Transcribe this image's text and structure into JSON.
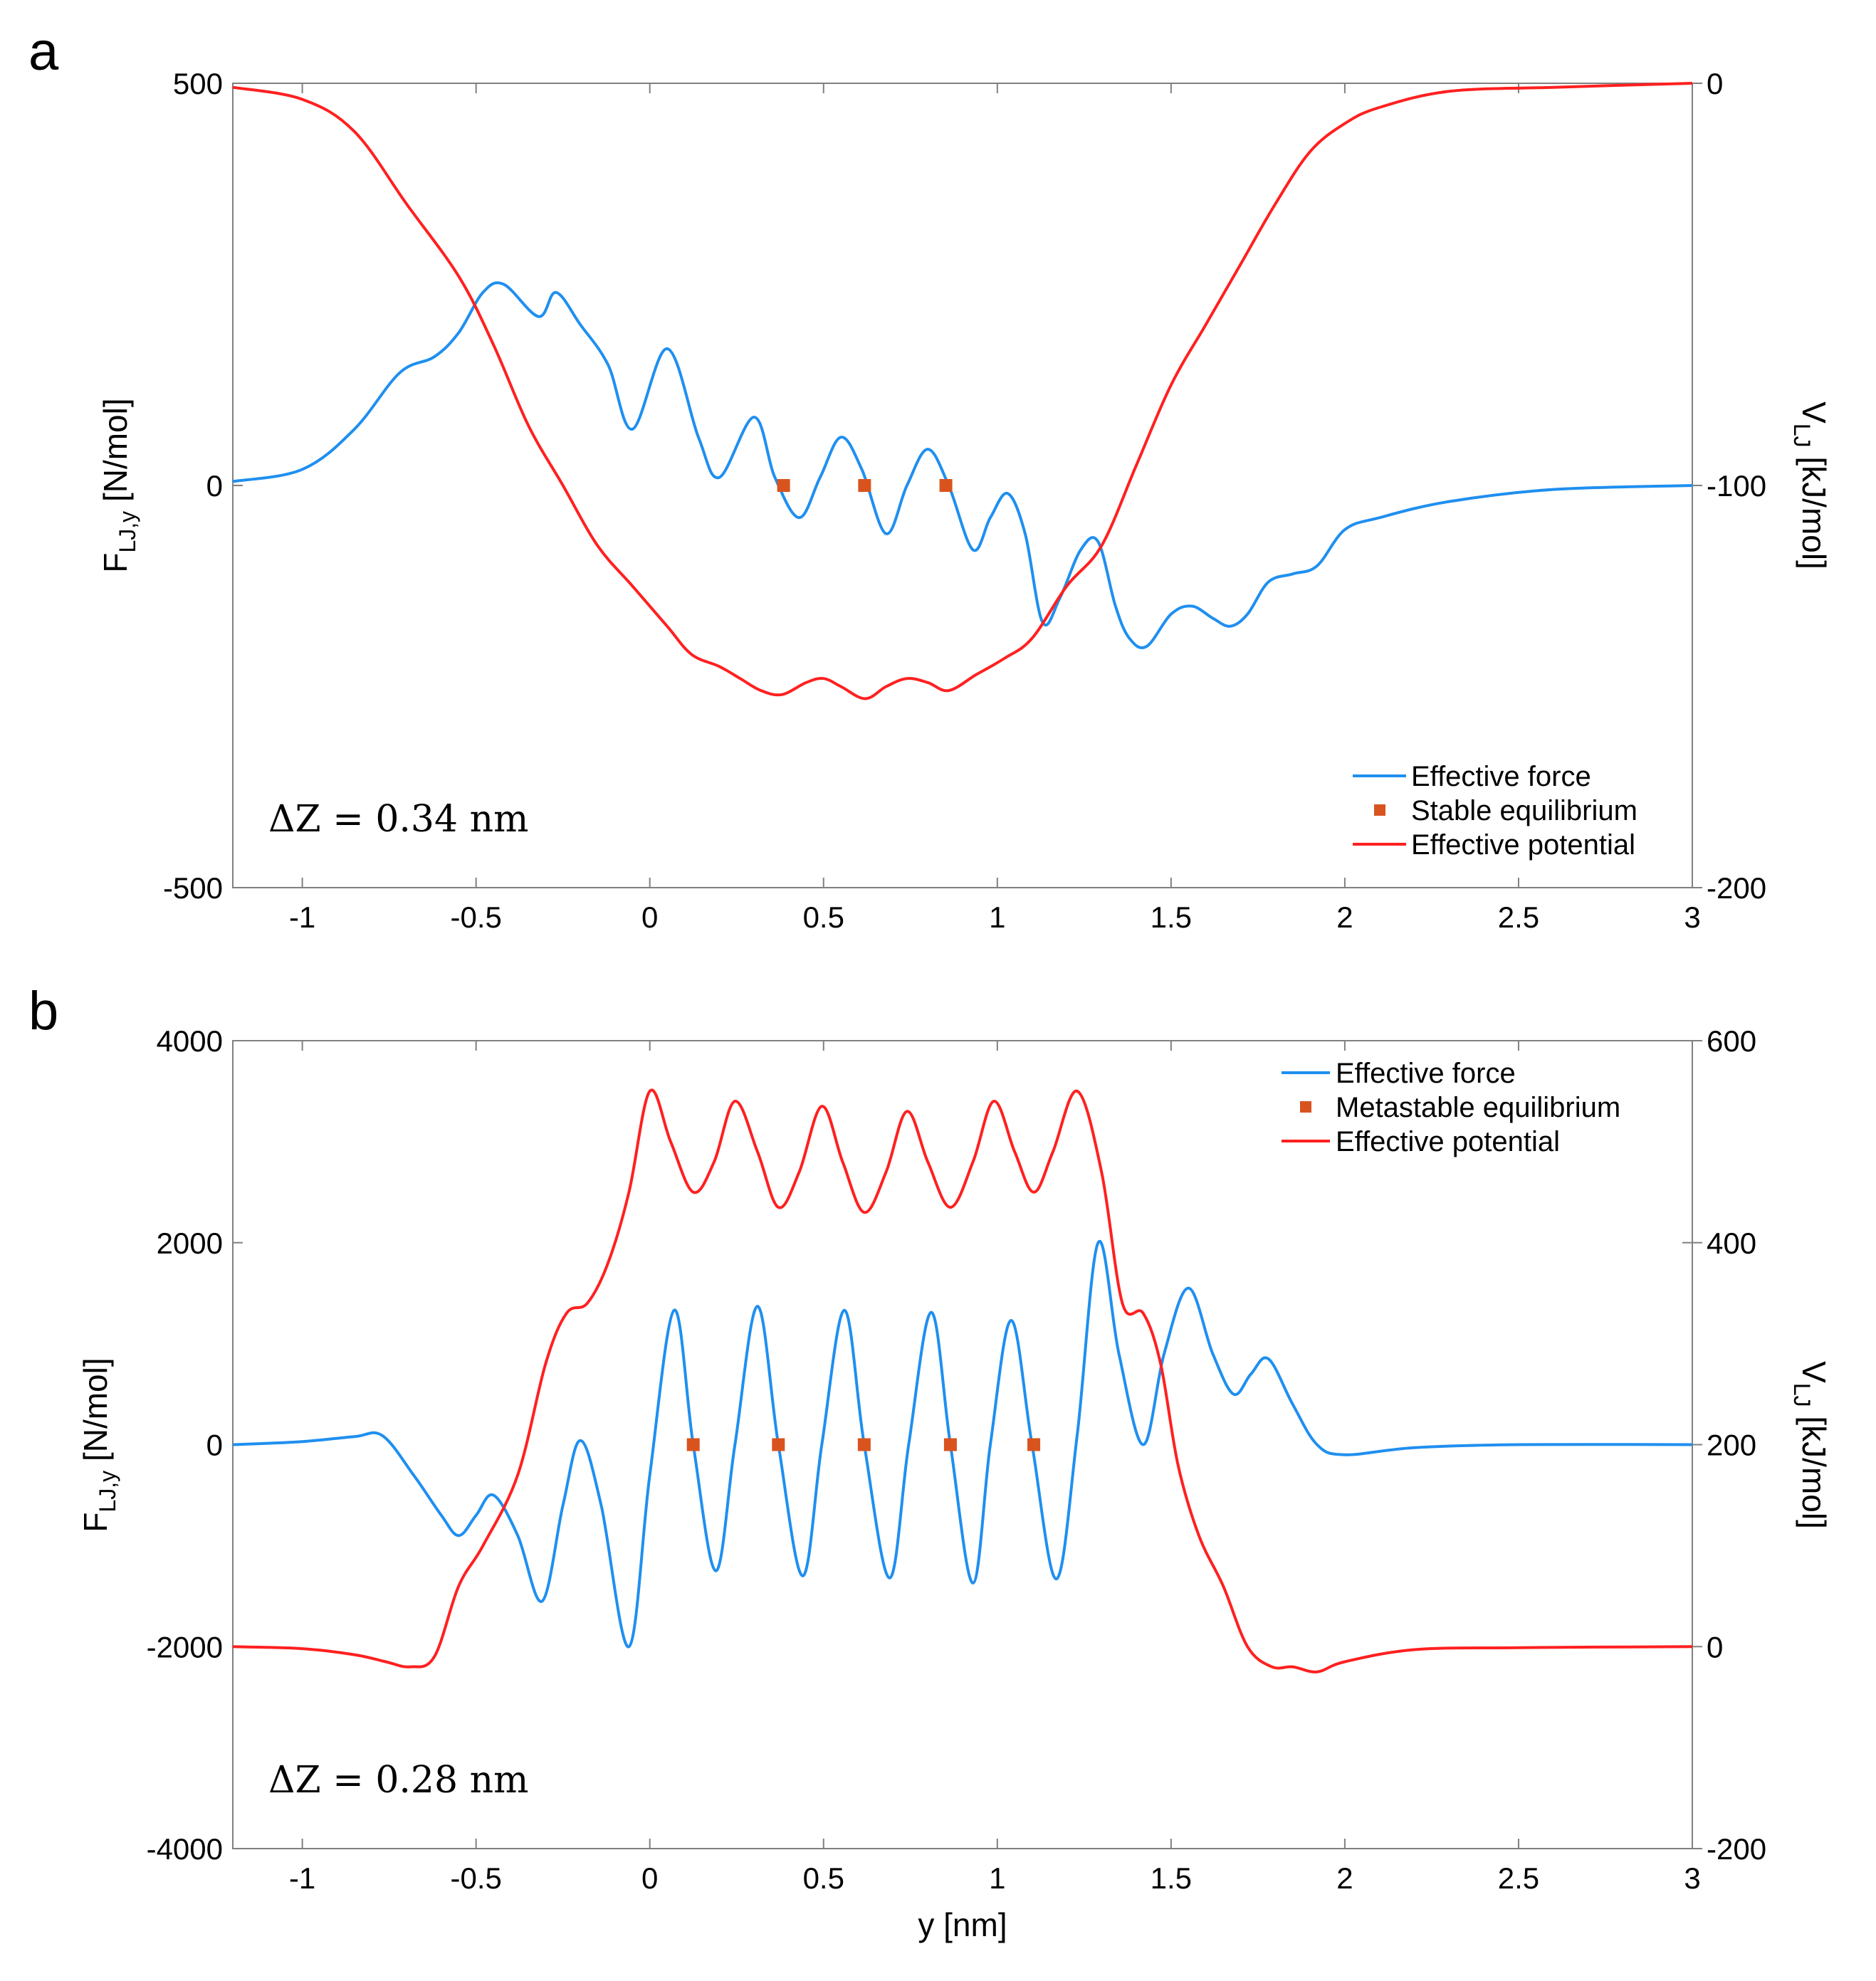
{
  "chart_data": [
    {
      "type": "line",
      "panel": "a",
      "xlabel": "",
      "ylabel_left": {
        "base": "F",
        "sub": "LJ,y",
        "unit": " [N/mol]"
      },
      "ylabel_right": {
        "base": "V",
        "sub": "LJ",
        "unit": " [kJ/mol]"
      },
      "xlim": [
        -1.2,
        3
      ],
      "ylim_left": [
        -500,
        500
      ],
      "ylim_right": [
        -200,
        0
      ],
      "xticks": [
        -1,
        -0.5,
        0,
        0.5,
        1,
        1.5,
        2,
        2.5,
        3
      ],
      "xtick_labels": [
        "-1",
        "-0.5",
        "0",
        "0.5",
        "1",
        "1.5",
        "2",
        "2.5",
        "3"
      ],
      "yticks_left": [
        -500,
        0,
        500
      ],
      "ytick_labels_left": [
        "-500",
        "0",
        "500"
      ],
      "yticks_right": [
        -200,
        -100,
        0
      ],
      "ytick_labels_right": [
        "-200",
        "-100",
        "0"
      ],
      "annotation": "ΔZ = 0.34 nm",
      "legend_position": "bottom-right",
      "series": [
        {
          "name": "Effective force",
          "axis": "left",
          "color": "#1f8ff0",
          "x": [
            -1.2,
            -1.0,
            -0.85,
            -0.72,
            -0.62,
            -0.55,
            -0.48,
            -0.42,
            -0.32,
            -0.27,
            -0.2,
            -0.12,
            -0.05,
            0.05,
            0.14,
            0.2,
            0.3,
            0.36,
            0.43,
            0.49,
            0.55,
            0.61,
            0.68,
            0.74,
            0.8,
            0.86,
            0.93,
            0.98,
            1.03,
            1.08,
            1.13,
            1.18,
            1.24,
            1.29,
            1.34,
            1.38,
            1.43,
            1.5,
            1.56,
            1.62,
            1.67,
            1.72,
            1.78,
            1.85,
            1.92,
            2.0,
            2.1,
            2.3,
            2.6,
            3.0
          ],
          "y": [
            5,
            20,
            70,
            140,
            160,
            190,
            240,
            250,
            210,
            240,
            200,
            150,
            70,
            170,
            60,
            10,
            85,
            10,
            -40,
            10,
            60,
            20,
            -60,
            0,
            45,
            0,
            -80,
            -40,
            -10,
            -60,
            -170,
            -140,
            -80,
            -70,
            -150,
            -190,
            -200,
            -160,
            -150,
            -165,
            -175,
            -160,
            -120,
            -110,
            -100,
            -55,
            -40,
            -20,
            -5,
            0
          ]
        },
        {
          "name": "Stable equilibrium",
          "axis": "left",
          "color": "#d9531e",
          "marker": "square",
          "x": [
            0.385,
            0.618,
            0.852
          ],
          "y": [
            0,
            0,
            0
          ]
        },
        {
          "name": "Effective potential",
          "axis": "right",
          "color": "#ff2020",
          "x": [
            -1.2,
            -1.0,
            -0.85,
            -0.7,
            -0.55,
            -0.45,
            -0.35,
            -0.25,
            -0.15,
            -0.05,
            0.05,
            0.12,
            0.2,
            0.26,
            0.32,
            0.38,
            0.45,
            0.5,
            0.55,
            0.62,
            0.68,
            0.74,
            0.8,
            0.86,
            0.94,
            1.02,
            1.1,
            1.2,
            1.3,
            1.4,
            1.5,
            1.6,
            1.7,
            1.8,
            1.9,
            2.0,
            2.1,
            2.3,
            2.6,
            3.0
          ],
          "y": [
            -1,
            -4,
            -12,
            -30,
            -48,
            -65,
            -85,
            -100,
            -115,
            -125,
            -135,
            -142,
            -145,
            -148,
            -151,
            -152,
            -149,
            -148,
            -150,
            -153,
            -150,
            -148,
            -149,
            -151,
            -147,
            -143,
            -138,
            -125,
            -115,
            -95,
            -75,
            -60,
            -45,
            -30,
            -17,
            -10,
            -6,
            -2,
            -1,
            0
          ]
        }
      ]
    },
    {
      "type": "line",
      "panel": "b",
      "xlabel": "y [nm]",
      "ylabel_left": {
        "base": "F",
        "sub": "LJ,y",
        "unit": " [N/mol]"
      },
      "ylabel_right": {
        "base": "V",
        "sub": "LJ",
        "unit": " [kJ/mol]"
      },
      "xlim": [
        -1.2,
        3
      ],
      "ylim_left": [
        -4000,
        4000
      ],
      "ylim_right": [
        -200,
        600
      ],
      "xticks": [
        -1,
        -0.5,
        0,
        0.5,
        1,
        1.5,
        2,
        2.5,
        3
      ],
      "xtick_labels": [
        "-1",
        "-0.5",
        "0",
        "0.5",
        "1",
        "1.5",
        "2",
        "2.5",
        "3"
      ],
      "yticks_left": [
        -4000,
        -2000,
        0,
        2000,
        4000
      ],
      "ytick_labels_left": [
        "-4000",
        "-2000",
        "0",
        "2000",
        "4000"
      ],
      "yticks_right": [
        -200,
        0,
        200,
        400,
        600
      ],
      "ytick_labels_right": [
        "-200",
        "0",
        "200",
        "400",
        "600"
      ],
      "annotation": "ΔZ = 0.28 nm",
      "legend_position": "top-right",
      "series": [
        {
          "name": "Effective force",
          "axis": "left",
          "color": "#1f8ff0",
          "x": [
            -1.2,
            -1.0,
            -0.85,
            -0.77,
            -0.68,
            -0.6,
            -0.55,
            -0.5,
            -0.45,
            -0.38,
            -0.31,
            -0.25,
            -0.2,
            -0.14,
            -0.06,
            0.0,
            0.07,
            0.125,
            0.19,
            0.245,
            0.31,
            0.37,
            0.44,
            0.495,
            0.56,
            0.617,
            0.69,
            0.745,
            0.81,
            0.865,
            0.93,
            0.98,
            1.04,
            1.1,
            1.17,
            1.23,
            1.29,
            1.35,
            1.42,
            1.48,
            1.55,
            1.62,
            1.68,
            1.73,
            1.78,
            1.85,
            1.92,
            2.0,
            2.2,
            2.5,
            3.0
          ],
          "y": [
            0,
            30,
            80,
            90,
            -300,
            -700,
            -900,
            -700,
            -500,
            -900,
            -1550,
            -600,
            40,
            -600,
            -2000,
            -300,
            1330,
            0,
            -1250,
            0,
            1370,
            0,
            -1300,
            0,
            1330,
            0,
            -1320,
            0,
            1310,
            0,
            -1370,
            0,
            1230,
            0,
            -1330,
            100,
            2000,
            900,
            0,
            900,
            1550,
            900,
            500,
            700,
            850,
            400,
            0,
            -100,
            -30,
            0,
            0
          ]
        },
        {
          "name": "Metastable  equilibrium",
          "axis": "left",
          "color": "#d9531e",
          "marker": "square",
          "x": [
            0.125,
            0.37,
            0.617,
            0.865,
            1.105
          ],
          "y": [
            0,
            0,
            0,
            0,
            0
          ]
        },
        {
          "name": "Effective potential",
          "axis": "right",
          "color": "#ff2020",
          "x": [
            -1.2,
            -1.0,
            -0.85,
            -0.76,
            -0.69,
            -0.62,
            -0.55,
            -0.48,
            -0.38,
            -0.3,
            -0.24,
            -0.18,
            -0.12,
            -0.06,
            0.0,
            0.06,
            0.125,
            0.185,
            0.245,
            0.31,
            0.37,
            0.43,
            0.495,
            0.555,
            0.617,
            0.68,
            0.74,
            0.8,
            0.865,
            0.93,
            0.99,
            1.05,
            1.105,
            1.16,
            1.23,
            1.3,
            1.36,
            1.42,
            1.47,
            1.52,
            1.58,
            1.65,
            1.72,
            1.79,
            1.85,
            1.92,
            2.0,
            2.2,
            2.5,
            3.0
          ],
          "y": [
            0,
            -2,
            -8,
            -15,
            -20,
            -10,
            60,
            100,
            170,
            280,
            330,
            340,
            380,
            450,
            550,
            500,
            450,
            480,
            540,
            490,
            435,
            470,
            535,
            480,
            430,
            470,
            530,
            480,
            435,
            480,
            540,
            490,
            450,
            490,
            550,
            470,
            340,
            330,
            280,
            180,
            110,
            60,
            0,
            -20,
            -20,
            -25,
            -15,
            -3,
            -1,
            0
          ]
        }
      ]
    }
  ]
}
